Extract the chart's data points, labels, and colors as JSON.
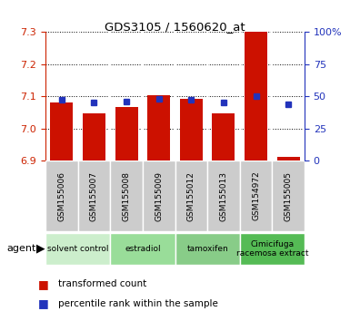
{
  "title": "GDS3105 / 1560620_at",
  "samples": [
    "GSM155006",
    "GSM155007",
    "GSM155008",
    "GSM155009",
    "GSM155012",
    "GSM155013",
    "GSM154972",
    "GSM155005"
  ],
  "red_values": [
    7.082,
    7.048,
    7.067,
    7.103,
    7.093,
    7.048,
    7.3,
    6.912
  ],
  "blue_values": [
    47,
    45,
    46,
    48,
    47,
    45,
    50,
    44
  ],
  "y_min": 6.9,
  "y_max": 7.3,
  "y_ticks": [
    6.9,
    7.0,
    7.1,
    7.2,
    7.3
  ],
  "right_y_ticks": [
    0,
    25,
    50,
    75,
    100
  ],
  "right_y_labels": [
    "0",
    "25",
    "50",
    "75",
    "100%"
  ],
  "bar_color": "#cc1100",
  "blue_color": "#2233bb",
  "baseline": 6.9,
  "agent_groups": [
    {
      "label": "solvent control",
      "start": 0,
      "end": 2,
      "color": "#cceecc"
    },
    {
      "label": "estradiol",
      "start": 2,
      "end": 4,
      "color": "#99dd99"
    },
    {
      "label": "tamoxifen",
      "start": 4,
      "end": 6,
      "color": "#88cc88"
    },
    {
      "label": "Cimicifuga\nracemosa extract",
      "start": 6,
      "end": 8,
      "color": "#55bb55"
    }
  ],
  "sample_bg_color": "#cccccc",
  "legend_red": "transformed count",
  "legend_blue": "percentile rank within the sample",
  "tick_color_left": "#cc2200",
  "tick_color_right": "#2233bb",
  "grid_color": "#000000"
}
